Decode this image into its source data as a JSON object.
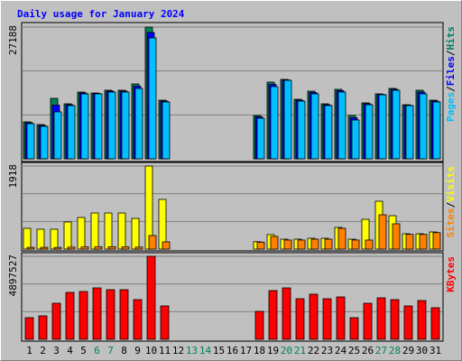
{
  "title": "Daily usage for January 2024",
  "legend_separator": "/",
  "chart_data": [
    {
      "type": "bar",
      "ylim": [
        0,
        27188
      ],
      "yticks": [
        27188
      ],
      "series": [
        {
          "name": "Hits",
          "color": "#00805c",
          "values": [
            7635,
            7077,
            12477,
            11360,
            13780,
            13594,
            14153,
            14153,
            15456,
            27188,
            12104,
            null,
            null,
            null,
            null,
            null,
            null,
            8939,
            15829,
            16387,
            12290,
            13966,
            11360,
            14339,
            8939,
            11546,
            13408,
            14525,
            11173,
            14153,
            12104
          ]
        },
        {
          "name": "Files",
          "color": "#0000ff",
          "values": [
            7450,
            6890,
            11080,
            11170,
            13590,
            13500,
            13970,
            13970,
            14990,
            26070,
            11920,
            null,
            null,
            null,
            null,
            null,
            null,
            8660,
            15360,
            16290,
            12100,
            13690,
            11170,
            14060,
            8470,
            11360,
            13310,
            14340,
            11080,
            13780,
            11920
          ]
        },
        {
          "name": "Pages",
          "color": "#00c0ff",
          "values": [
            7263,
            6704,
            9683,
            10987,
            13408,
            13408,
            13780,
            13780,
            14525,
            24953,
            11732,
            null,
            null,
            null,
            null,
            null,
            null,
            8380,
            14898,
            16201,
            11918,
            13408,
            10987,
            13780,
            8007,
            11173,
            13222,
            14153,
            10987,
            13408,
            11732
          ]
        }
      ]
    },
    {
      "type": "bar",
      "ylim": [
        0,
        1918
      ],
      "yticks": [
        1918
      ],
      "series": [
        {
          "name": "Visits",
          "color": "#ffff00",
          "values": [
            480,
            459,
            459,
            626,
            730,
            834,
            834,
            834,
            709,
            1918,
            1147,
            null,
            null,
            null,
            null,
            null,
            null,
            170,
            334,
            229,
            229,
            250,
            250,
            500,
            229,
            688,
            1105,
            771,
            354,
            354,
            396
          ]
        },
        {
          "name": "Sites",
          "color": "#ff8000",
          "values": [
            40,
            40,
            38,
            45,
            50,
            55,
            55,
            50,
            45,
            313,
            167,
            null,
            null,
            null,
            null,
            null,
            null,
            160,
            292,
            209,
            209,
            229,
            229,
            480,
            210,
            209,
            792,
            584,
            340,
            340,
            380
          ]
        }
      ]
    },
    {
      "type": "bar",
      "ylim": [
        0,
        4897527
      ],
      "yticks": [
        4897527
      ],
      "categories": [
        "1",
        "2",
        "3",
        "4",
        "5",
        "6",
        "7",
        "8",
        "9",
        "10",
        "11",
        "12",
        "13",
        "14",
        "15",
        "16",
        "17",
        "18",
        "19",
        "20",
        "21",
        "22",
        "23",
        "24",
        "25",
        "26",
        "27",
        "28",
        "29",
        "30",
        "31"
      ],
      "category_colors": [
        "#000000",
        "#000000",
        "#000000",
        "#000000",
        "#000000",
        "#00805c",
        "#00805c",
        "#000000",
        "#000000",
        "#000000",
        "#000000",
        "#000000",
        "#00805c",
        "#00805c",
        "#000000",
        "#000000",
        "#000000",
        "#000000",
        "#000000",
        "#00805c",
        "#00805c",
        "#000000",
        "#000000",
        "#000000",
        "#000000",
        "#000000",
        "#00805c",
        "#00805c",
        "#000000",
        "#000000",
        "#000000"
      ],
      "series": [
        {
          "name": "KBytes",
          "color": "#ff0000",
          "values": [
            1277616,
            1384084,
            2129360,
            2768168,
            2821402,
            3034338,
            2927870,
            2927870,
            2342296,
            4897527,
            1969658,
            null,
            null,
            null,
            null,
            null,
            null,
            1650254,
            2875402,
            3034338,
            2395530,
            2661700,
            2395530,
            2501998,
            1277616,
            2129360,
            2448764,
            2342296,
            1969658,
            2289062,
            1863190
          ]
        }
      ]
    }
  ]
}
